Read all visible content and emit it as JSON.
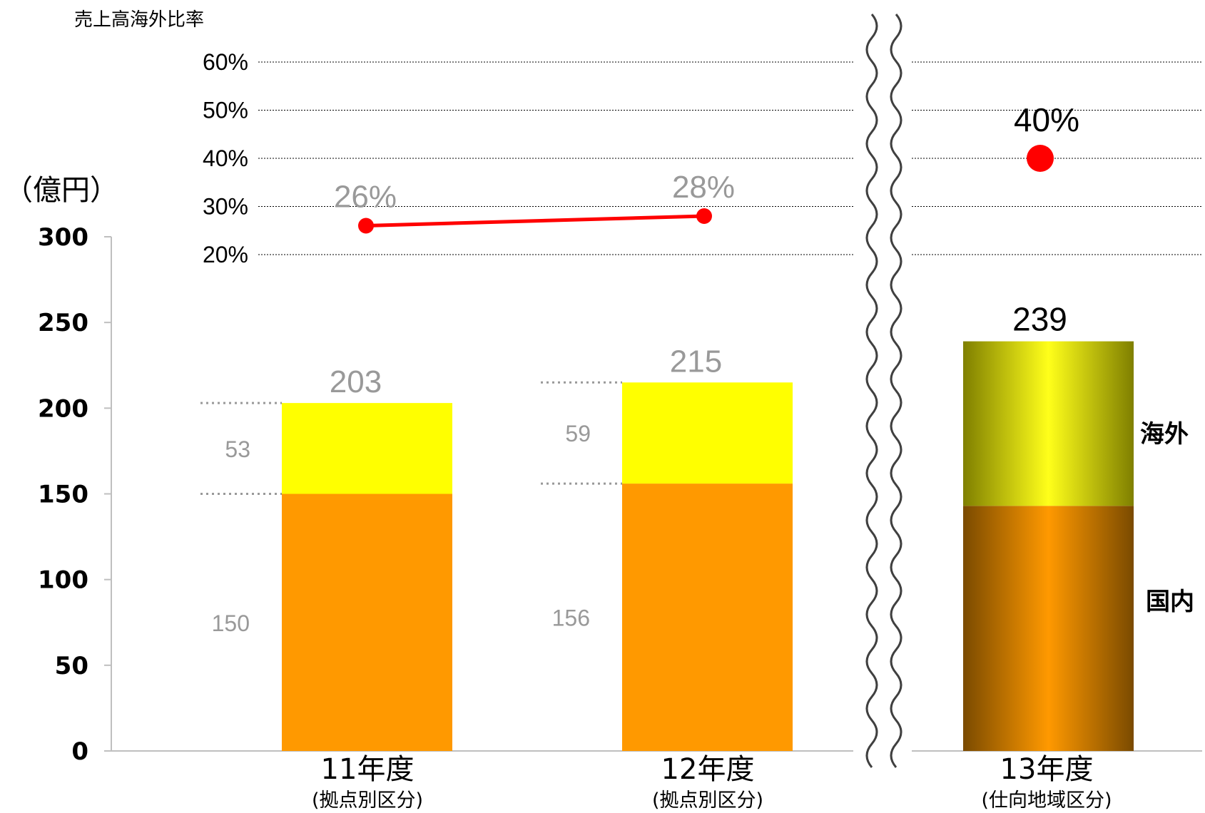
{
  "chart_data": {
    "type": "bar",
    "stacked": true,
    "unit_label": "（億円）",
    "ratio_axis_title": "売上高海外比率",
    "y_ticks": [
      "0",
      "50",
      "100",
      "150",
      "200",
      "250",
      "300"
    ],
    "ylim": [
      0,
      300
    ],
    "ratio_ticks": [
      "20%",
      "30%",
      "40%",
      "50%",
      "60%"
    ],
    "ratio_lim": [
      20,
      60
    ],
    "grid": true,
    "axis_break": true,
    "categories": [
      {
        "main": "11年度",
        "sub": "(拠点別区分)"
      },
      {
        "main": "12年度",
        "sub": "(拠点別区分)"
      },
      {
        "main": "13年度",
        "sub": "(仕向地域区分)"
      }
    ],
    "series": [
      {
        "name": "国内",
        "values": [
          150,
          156,
          143
        ],
        "labels": [
          "150",
          "156",
          ""
        ]
      },
      {
        "name": "海外",
        "values": [
          53,
          59,
          96
        ],
        "labels": [
          "53",
          "59",
          ""
        ]
      }
    ],
    "totals": [
      "203",
      "215",
      "239"
    ],
    "overseas_ratio": {
      "values": [
        26,
        28,
        40
      ],
      "labels": [
        "26%",
        "28%",
        "40%"
      ]
    },
    "legend": [
      "海外",
      "国内"
    ],
    "colors": {
      "domestic": "#ff9900",
      "overseas": "#ffff00",
      "ratio_line": "#ff0000",
      "muted_text": "#999999"
    }
  }
}
